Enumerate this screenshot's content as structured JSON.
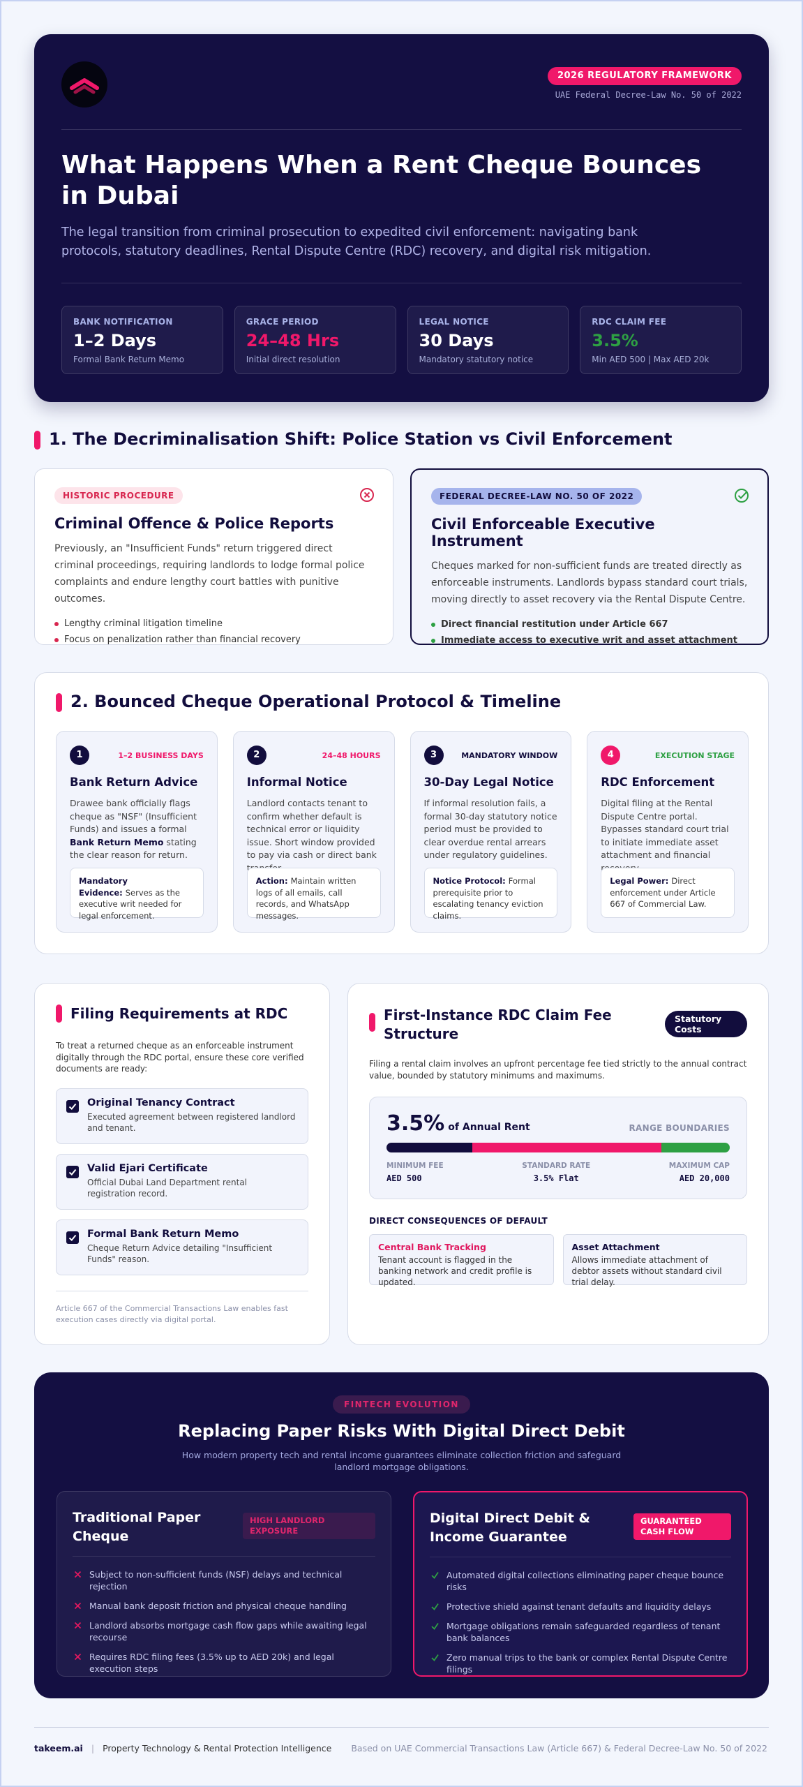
{
  "header": {
    "badge": "2026 REGULATORY FRAMEWORK",
    "law": "UAE Federal Decree-Law No. 50 of 2022",
    "title": "What Happens When a Rent Cheque Bounces in Dubai",
    "subtitle": "The legal transition from criminal prosecution to expedited civil enforcement: navigating bank protocols, statutory deadlines, Rental Dispute Centre (RDC) recovery, and digital risk mitigation.",
    "stats": [
      {
        "label": "BANK NOTIFICATION",
        "value": "1–2 Days",
        "note": "Formal Bank Return Memo"
      },
      {
        "label": "GRACE PERIOD",
        "value": "24–48 Hrs",
        "note": "Initial direct resolution"
      },
      {
        "label": "LEGAL NOTICE",
        "value": "30 Days",
        "note": "Mandatory statutory notice"
      },
      {
        "label": "RDC CLAIM FEE",
        "value": "3.5%",
        "note": "Min AED 500 | Max AED 20k"
      }
    ]
  },
  "section1": {
    "heading": "1. The Decriminalisation Shift: Police Station vs Civil Enforcement",
    "cards": [
      {
        "tag": "HISTORIC PROCEDURE",
        "title": "Criminal Offence & Police Reports",
        "text": "Previously, an \"Insufficient Funds\" return triggered direct criminal proceedings, requiring landlords to lodge formal police complaints and endure lengthy court battles with punitive outcomes.",
        "bullets": [
          "Lengthy criminal litigation timeline",
          "Focus on penalization rather than financial recovery"
        ]
      },
      {
        "tag": "FEDERAL DECREE-LAW NO. 50 OF 2022",
        "title": "Civil Enforceable Executive Instrument",
        "text": "Cheques marked for non-sufficient funds are treated directly as enforceable instruments. Landlords bypass standard court trials, moving directly to asset recovery via the Rental Dispute Centre.",
        "bullets": [
          "Direct financial restitution under Article 667",
          "Immediate access to executive writ and asset attachment"
        ]
      }
    ]
  },
  "section2": {
    "heading": "2. Bounced Cheque Operational Protocol & Timeline",
    "steps": [
      {
        "number": 1,
        "timing": "1–2 BUSINESS DAYS",
        "title": "Bank Return Advice",
        "text_parts": [
          "Drawee bank officially flags cheque as \"NSF\" (Insufficient Funds) and issues a formal ",
          "Bank Return Memo",
          " stating the clear reason for return."
        ],
        "note_label": "Mandatory Evidence:",
        "note": "Serves as the executive writ needed for legal enforcement."
      },
      {
        "number": 2,
        "timing": "24–48 HOURS",
        "title": "Informal Notice",
        "text_parts": [
          "Landlord contacts tenant to confirm whether default is technical error or liquidity issue. Short window provided to pay via cash or direct bank transfer."
        ],
        "note_label": "Action:",
        "note": "Maintain written logs of all emails, call records, and WhatsApp messages."
      },
      {
        "number": 3,
        "timing": "MANDATORY WINDOW",
        "title": "30-Day Legal Notice",
        "text_parts": [
          "If informal resolution fails, a formal 30-day statutory notice period must be provided to clear overdue rental arrears under regulatory guidelines."
        ],
        "note_label": "Notice Protocol:",
        "note": "Formal prerequisite prior to escalating tenancy eviction claims."
      },
      {
        "number": 4,
        "timing": "EXECUTION STAGE",
        "title": "RDC Enforcement",
        "text_parts": [
          "Digital filing at the Rental Dispute Centre portal. Bypasses standard court trial to initiate immediate asset attachment and financial recovery."
        ],
        "note_label": "Legal Power:",
        "note": "Direct enforcement under Article 667 of Commercial Law."
      }
    ]
  },
  "filing": {
    "heading": "Filing Requirements at RDC",
    "intro": "To treat a returned cheque as an enforceable instrument digitally through the RDC portal, ensure these core verified documents are ready:",
    "items": [
      {
        "title": "Original Tenancy Contract",
        "desc": "Executed agreement between registered landlord and tenant."
      },
      {
        "title": "Valid Ejari Certificate",
        "desc": "Official Dubai Land Department rental registration record."
      },
      {
        "title": "Formal Bank Return Memo",
        "desc": "Cheque Return Advice detailing \"Insufficient Funds\" reason."
      }
    ],
    "footnote": "Article 667 of the Commercial Transactions Law enables fast execution cases directly via digital portal."
  },
  "fee": {
    "heading": "First-Instance RDC Claim Fee Structure",
    "badge": "Statutory Costs",
    "intro": "Filing a rental claim involves an upfront percentage fee tied strictly to the annual contract value, bounded by statutory minimums and maximums.",
    "rate": "3.5%",
    "rate_suffix": "of Annual Rent",
    "range_label": "RANGE BOUNDARIES",
    "bounds": [
      {
        "label": "MINIMUM FEE",
        "value": "AED 500"
      },
      {
        "label": "STANDARD RATE",
        "value": "3.5% Flat"
      },
      {
        "label": "MAXIMUM CAP",
        "value": "AED 20,000"
      }
    ],
    "consequences_heading": "DIRECT CONSEQUENCES OF DEFAULT",
    "consequences": [
      {
        "title": "Central Bank Tracking",
        "text": "Tenant account is flagged in the banking network and credit profile is updated."
      },
      {
        "title": "Asset Attachment",
        "text": "Allows immediate attachment of debtor assets without standard civil trial delay."
      }
    ]
  },
  "digital": {
    "tag": "FINTECH EVOLUTION",
    "title": "Replacing Paper Risks With Digital Direct Debit",
    "subtitle": "How modern property tech and rental income guarantees eliminate collection friction and safeguard landlord mortgage obligations.",
    "columns": [
      {
        "title": "Traditional Paper Cheque",
        "badge": "HIGH LANDLORD EXPOSURE",
        "items": [
          "Subject to non-sufficient funds (NSF) delays and technical rejection",
          "Manual bank deposit friction and physical cheque handling",
          "Landlord absorbs mortgage cash flow gaps while awaiting legal recourse",
          "Requires RDC filing fees (3.5% up to AED 20k) and legal execution steps"
        ]
      },
      {
        "title": "Digital Direct Debit & Income Guarantee",
        "badge": "GUARANTEED CASH FLOW",
        "items": [
          "Automated digital collections eliminating paper cheque bounce risks",
          "Protective shield against tenant defaults and liquidity delays",
          "Mortgage obligations remain safeguarded regardless of tenant bank balances",
          "Zero manual trips to the bank or complex Rental Dispute Centre filings"
        ]
      }
    ]
  },
  "footer": {
    "brand": "takeem.ai",
    "tagline": "Property Technology & Rental Protection Intelligence",
    "source": "Based on UAE Commercial Transactions Law (Article 667) & Federal Decree-Law No. 50 of 2022"
  }
}
